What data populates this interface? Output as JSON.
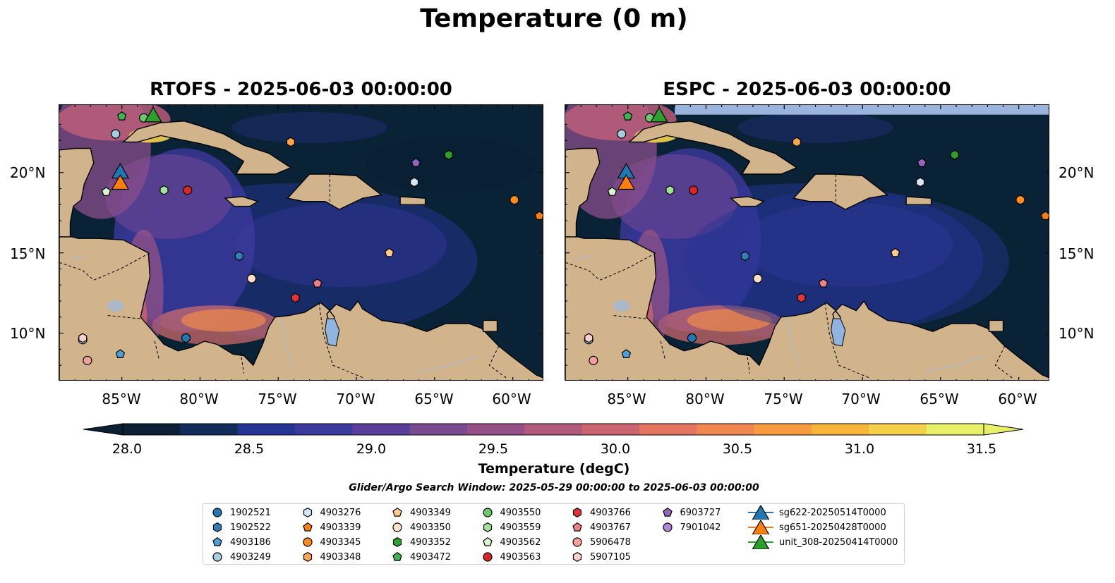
{
  "title": "Temperature (0 m)",
  "panels": [
    {
      "title": "RTOFS - 2025-06-03 00:00:00"
    },
    {
      "title": "ESPC - 2025-06-03 00:00:00"
    }
  ],
  "map_extent": {
    "lon": [
      -89,
      -58
    ],
    "lat": [
      7,
      24.2
    ]
  },
  "lat_labels": [
    "20°N",
    "15°N",
    "10°N"
  ],
  "lon_labels": [
    "85°W",
    "80°W",
    "75°W",
    "70°W",
    "65°W",
    "60°W"
  ],
  "colorbar": {
    "label": "Temperature (degC)",
    "min": 27.8,
    "max": 31.6,
    "ticks": [
      "28.0",
      "28.5",
      "29.0",
      "29.5",
      "30.0",
      "30.5",
      "31.0",
      "31.5"
    ],
    "colors": [
      "#0b2035",
      "#112c5a",
      "#263595",
      "#3c3a9e",
      "#5a3f9a",
      "#794a92",
      "#955187",
      "#b15a7c",
      "#cc6470",
      "#e47460",
      "#f28650",
      "#f89b40",
      "#f9b43a",
      "#f5cf48",
      "#e8f06a"
    ]
  },
  "colors": {
    "land": "#d2b48c",
    "ocean_warm": "#f08a4b",
    "lake": "#8fb4e0",
    "river": "#aab8c8",
    "nodata": "#9ab4dc"
  },
  "search_window": "Glider/Argo Search Window: 2025-05-29 00:00:00 to 2025-06-03 00:00:00",
  "legend": [
    {
      "label": "1902521",
      "marker": "circle",
      "color": "#1f77b4"
    },
    {
      "label": "1902522",
      "marker": "hexagon",
      "color": "#2f7fb8"
    },
    {
      "label": "4903186",
      "marker": "pentagon",
      "color": "#4d9fd6"
    },
    {
      "label": "4903249",
      "marker": "circle",
      "color": "#a6cee3"
    },
    {
      "label": "4903276",
      "marker": "hexagon",
      "color": "#d6e8f6"
    },
    {
      "label": "4903339",
      "marker": "pentagon",
      "color": "#ff7f0e"
    },
    {
      "label": "4903345",
      "marker": "circle",
      "color": "#ff8c1a"
    },
    {
      "label": "4903348",
      "marker": "hexagon",
      "color": "#ffa64d"
    },
    {
      "label": "4903349",
      "marker": "pentagon",
      "color": "#ffcc8f"
    },
    {
      "label": "4903350",
      "marker": "circle",
      "color": "#ffe0c4"
    },
    {
      "label": "4903352",
      "marker": "hexagon",
      "color": "#2ca02c"
    },
    {
      "label": "4903472",
      "marker": "pentagon",
      "color": "#3cb44b"
    },
    {
      "label": "4903550",
      "marker": "circle",
      "color": "#6cc86c"
    },
    {
      "label": "4903559",
      "marker": "hexagon",
      "color": "#a1e39a"
    },
    {
      "label": "4903562",
      "marker": "pentagon",
      "color": "#d9f7cf"
    },
    {
      "label": "4903563",
      "marker": "circle",
      "color": "#d62728"
    },
    {
      "label": "4903766",
      "marker": "hexagon",
      "color": "#e0343a"
    },
    {
      "label": "4903767",
      "marker": "pentagon",
      "color": "#f07f86"
    },
    {
      "label": "5906478",
      "marker": "circle",
      "color": "#f4a09a"
    },
    {
      "label": "5907105",
      "marker": "hexagon",
      "color": "#fbd0cc"
    },
    {
      "label": "6903727",
      "marker": "pentagon",
      "color": "#9467bd"
    },
    {
      "label": "7901042",
      "marker": "circle",
      "color": "#b085d6"
    },
    {
      "label": "sg622-20250514T0000",
      "marker": "triangle",
      "color": "#1f77b4"
    },
    {
      "label": "sg651-20250428T0000",
      "marker": "triangle",
      "color": "#ff7f0e"
    },
    {
      "label": "unit_308-20250414T0000",
      "marker": "triangle",
      "color": "#2ca02c"
    }
  ],
  "observations": [
    {
      "id": "1902521",
      "lon": -80.9,
      "lat": 9.7
    },
    {
      "id": "1902522",
      "lon": -77.5,
      "lat": 14.8
    },
    {
      "id": "4903186",
      "lon": -85.1,
      "lat": 8.7
    },
    {
      "id": "4903249",
      "lon": -87.5,
      "lat": 9.6
    },
    {
      "id": "4903249",
      "lon": -85.4,
      "lat": 22.4
    },
    {
      "id": "4903276",
      "lon": -66.3,
      "lat": 19.4
    },
    {
      "id": "4903339",
      "lon": -58.3,
      "lat": 17.3
    },
    {
      "id": "4903345",
      "lon": -59.9,
      "lat": 18.3
    },
    {
      "id": "4903348",
      "lon": -74.2,
      "lat": 21.9
    },
    {
      "id": "4903349",
      "lon": -67.9,
      "lat": 15.0
    },
    {
      "id": "4903350",
      "lon": -76.7,
      "lat": 13.4
    },
    {
      "id": "4903352",
      "lon": -64.1,
      "lat": 21.1
    },
    {
      "id": "4903472",
      "lon": -85.0,
      "lat": 23.5
    },
    {
      "id": "4903550",
      "lon": -83.6,
      "lat": 23.4
    },
    {
      "id": "4903559",
      "lon": -82.3,
      "lat": 18.9
    },
    {
      "id": "4903562",
      "lon": -86.0,
      "lat": 18.8
    },
    {
      "id": "4903563",
      "lon": -80.8,
      "lat": 18.9
    },
    {
      "id": "4903766",
      "lon": -73.9,
      "lat": 12.2
    },
    {
      "id": "4903767",
      "lon": -72.5,
      "lat": 13.1
    },
    {
      "id": "5906478",
      "lon": -87.2,
      "lat": 8.3
    },
    {
      "id": "5907105",
      "lon": -87.5,
      "lat": 9.7
    },
    {
      "id": "6903727",
      "lon": -66.2,
      "lat": 20.6
    },
    {
      "id": "sg622-20250514T0000",
      "lon": -85.1,
      "lat": 20.1
    },
    {
      "id": "sg651-20250428T0000",
      "lon": -85.1,
      "lat": 19.4
    },
    {
      "id": "unit_308-20250414T0000",
      "lon": -83.0,
      "lat": 23.6
    }
  ]
}
